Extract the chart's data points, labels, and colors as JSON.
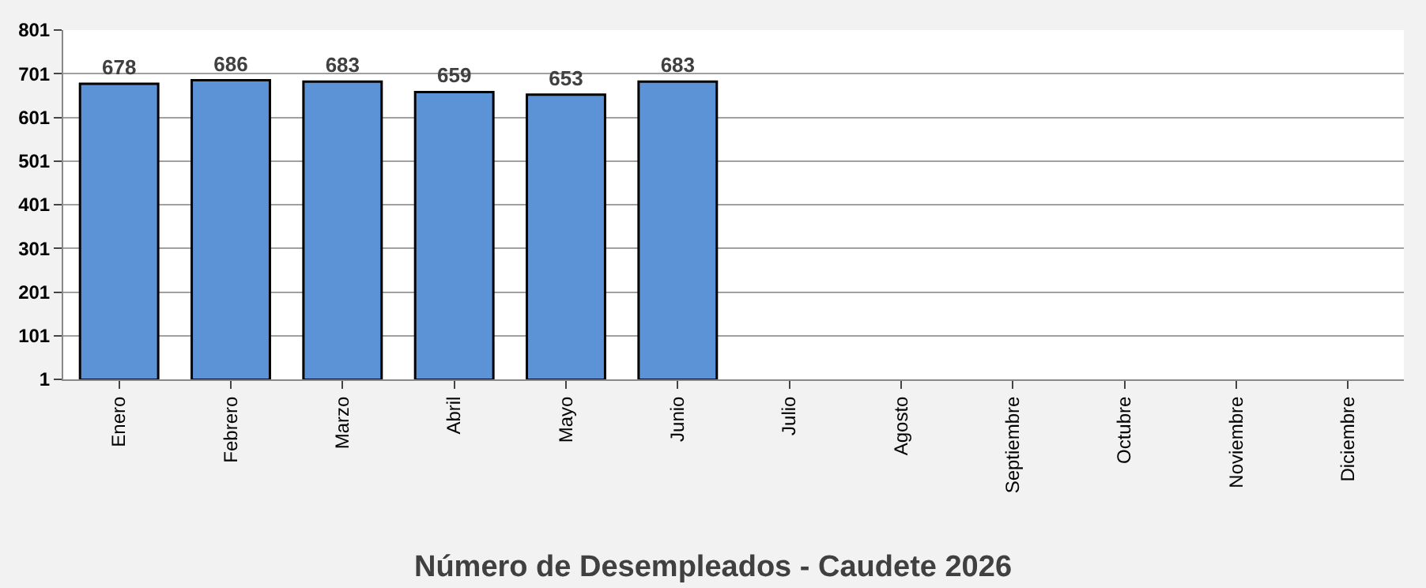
{
  "chart_data": {
    "type": "bar",
    "title": "Número de Desempleados - Caudete 2026",
    "categories": [
      "Enero",
      "Febrero",
      "Marzo",
      "Abril",
      "Mayo",
      "Junio",
      "Julio",
      "Agosto",
      "Septiembre",
      "Octubre",
      "Noviembre",
      "Diciembre"
    ],
    "values": [
      678,
      686,
      683,
      659,
      653,
      683,
      null,
      null,
      null,
      null,
      null,
      null
    ],
    "color": "#5b93d6",
    "data_labels": true,
    "ylim": [
      1,
      801
    ],
    "yticks": [
      1,
      101,
      201,
      301,
      401,
      501,
      601,
      701,
      801
    ],
    "grid": "y"
  }
}
